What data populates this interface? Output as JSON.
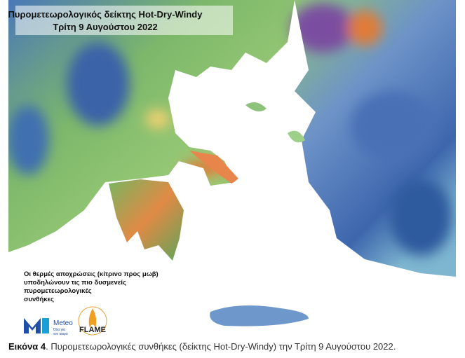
{
  "map": {
    "title_lines": [
      "Πυρομετεωρολογικός δείκτης Hot-Dry-Windy",
      "Τρίτη 9 Αυγούστου 2022"
    ],
    "note_lines": [
      "Οι θερμές αποχρώσεις (κίτρινο προς μωβ)",
      "υποδηλώνουν τις πιο δυσμενείς",
      "πυρομετεωρολογικές",
      "συνθήκες"
    ],
    "logos": {
      "meteo": "Meteo",
      "meteo_tagline": [
        "Όλα για",
        "τον καιρό"
      ],
      "flame": "FLAME"
    }
  },
  "caption": {
    "label": "Εικόνα 4",
    "text": ". Πυρομετεωρολογικές συνθήκες (δείκτης Hot-Dry-Windy) την Τρίτη 9 Αυγούστου 2022."
  }
}
